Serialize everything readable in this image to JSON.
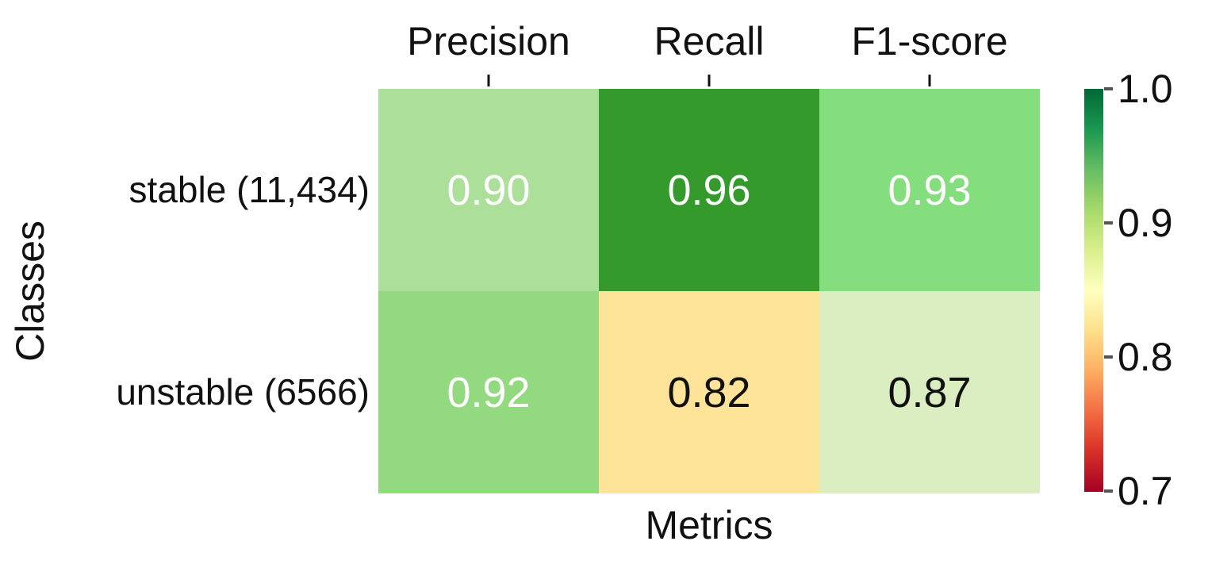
{
  "chart_data": {
    "type": "heatmap",
    "xlabel": "Metrics",
    "ylabel": "Classes",
    "columns": [
      "Precision",
      "Recall",
      "F1-score"
    ],
    "rows": [
      "stable (11,434)",
      "unstable (6566)"
    ],
    "values": [
      [
        0.9,
        0.96,
        0.93
      ],
      [
        0.92,
        0.82,
        0.87
      ]
    ],
    "cell_labels": [
      [
        "0.90",
        "0.96",
        "0.93"
      ],
      [
        "0.92",
        "0.82",
        "0.87"
      ]
    ],
    "cell_colors": [
      [
        "#ace09a",
        "#339a2b",
        "#85de7e"
      ],
      [
        "#92d97f",
        "#fde499",
        "#daeec1"
      ]
    ],
    "cell_text_colors": [
      [
        "#ffffff",
        "#ffffff",
        "#ffffff"
      ],
      [
        "#ffffff",
        "#111111",
        "#111111"
      ]
    ],
    "grid": false,
    "colormap": "RdYlGn",
    "colorbar": {
      "min": 0.7,
      "max": 1.0,
      "tick_labels": [
        "1.0",
        "0.9",
        "0.8",
        "0.7"
      ],
      "tick_values": [
        1.0,
        0.9,
        0.8,
        0.7
      ],
      "gradient_top_to_bottom": [
        "#006837",
        "#1a9850",
        "#66bd63",
        "#a6d96a",
        "#d9ef8b",
        "#ffffbf",
        "#fee08b",
        "#fdae61",
        "#f46d43",
        "#d73027",
        "#a50026"
      ]
    }
  }
}
